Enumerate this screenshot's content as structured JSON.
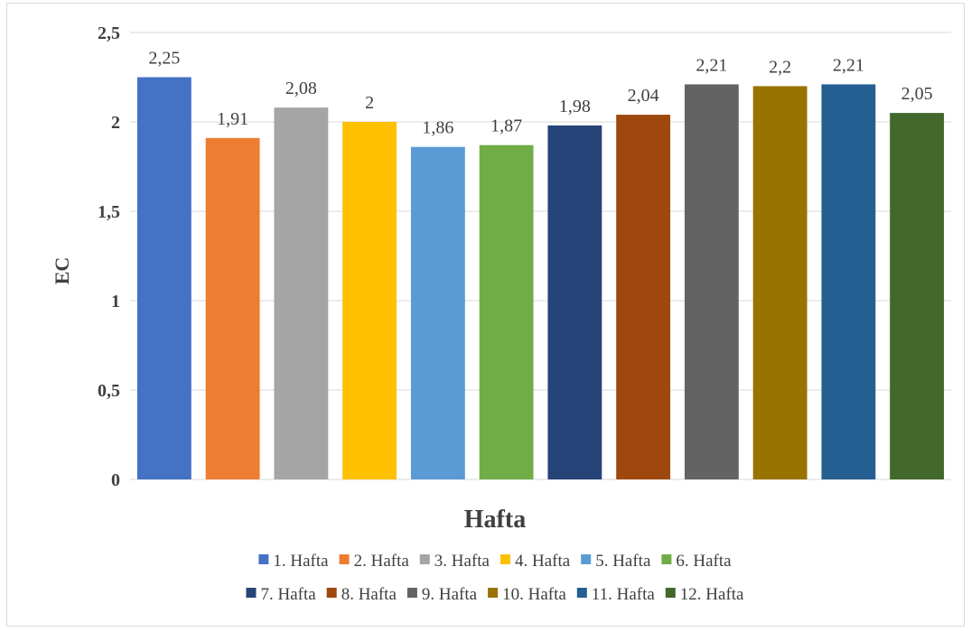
{
  "chart_data": {
    "type": "bar",
    "title": "",
    "xlabel": "Hafta",
    "ylabel": "EC",
    "ylim": [
      0,
      2.5
    ],
    "yticks": [
      "0",
      "0,5",
      "1",
      "1,5",
      "2",
      "2,5"
    ],
    "grid": true,
    "legend_position": "bottom",
    "series": [
      {
        "name": "1. Hafta",
        "value": 2.25,
        "label": "2,25",
        "color": "#4472c4"
      },
      {
        "name": "2. Hafta",
        "value": 1.91,
        "label": "1,91",
        "color": "#ed7d31"
      },
      {
        "name": "3. Hafta",
        "value": 2.08,
        "label": "2,08",
        "color": "#a5a5a5"
      },
      {
        "name": "4. Hafta",
        "value": 2.0,
        "label": "2",
        "color": "#ffc000"
      },
      {
        "name": "5. Hafta",
        "value": 1.86,
        "label": "1,86",
        "color": "#5b9bd5"
      },
      {
        "name": "6. Hafta",
        "value": 1.87,
        "label": "1,87",
        "color": "#70ad47"
      },
      {
        "name": "7. Hafta",
        "value": 1.98,
        "label": "1,98",
        "color": "#264478"
      },
      {
        "name": "8. Hafta",
        "value": 2.04,
        "label": "2,04",
        "color": "#9e480e"
      },
      {
        "name": "9. Hafta",
        "value": 2.21,
        "label": "2,21",
        "color": "#636363"
      },
      {
        "name": "10. Hafta",
        "value": 2.2,
        "label": "2,2",
        "color": "#997300"
      },
      {
        "name": "11. Hafta",
        "value": 2.21,
        "label": "2,21",
        "color": "#255e91"
      },
      {
        "name": "12. Hafta",
        "value": 2.05,
        "label": "2,05",
        "color": "#43682b"
      }
    ]
  }
}
